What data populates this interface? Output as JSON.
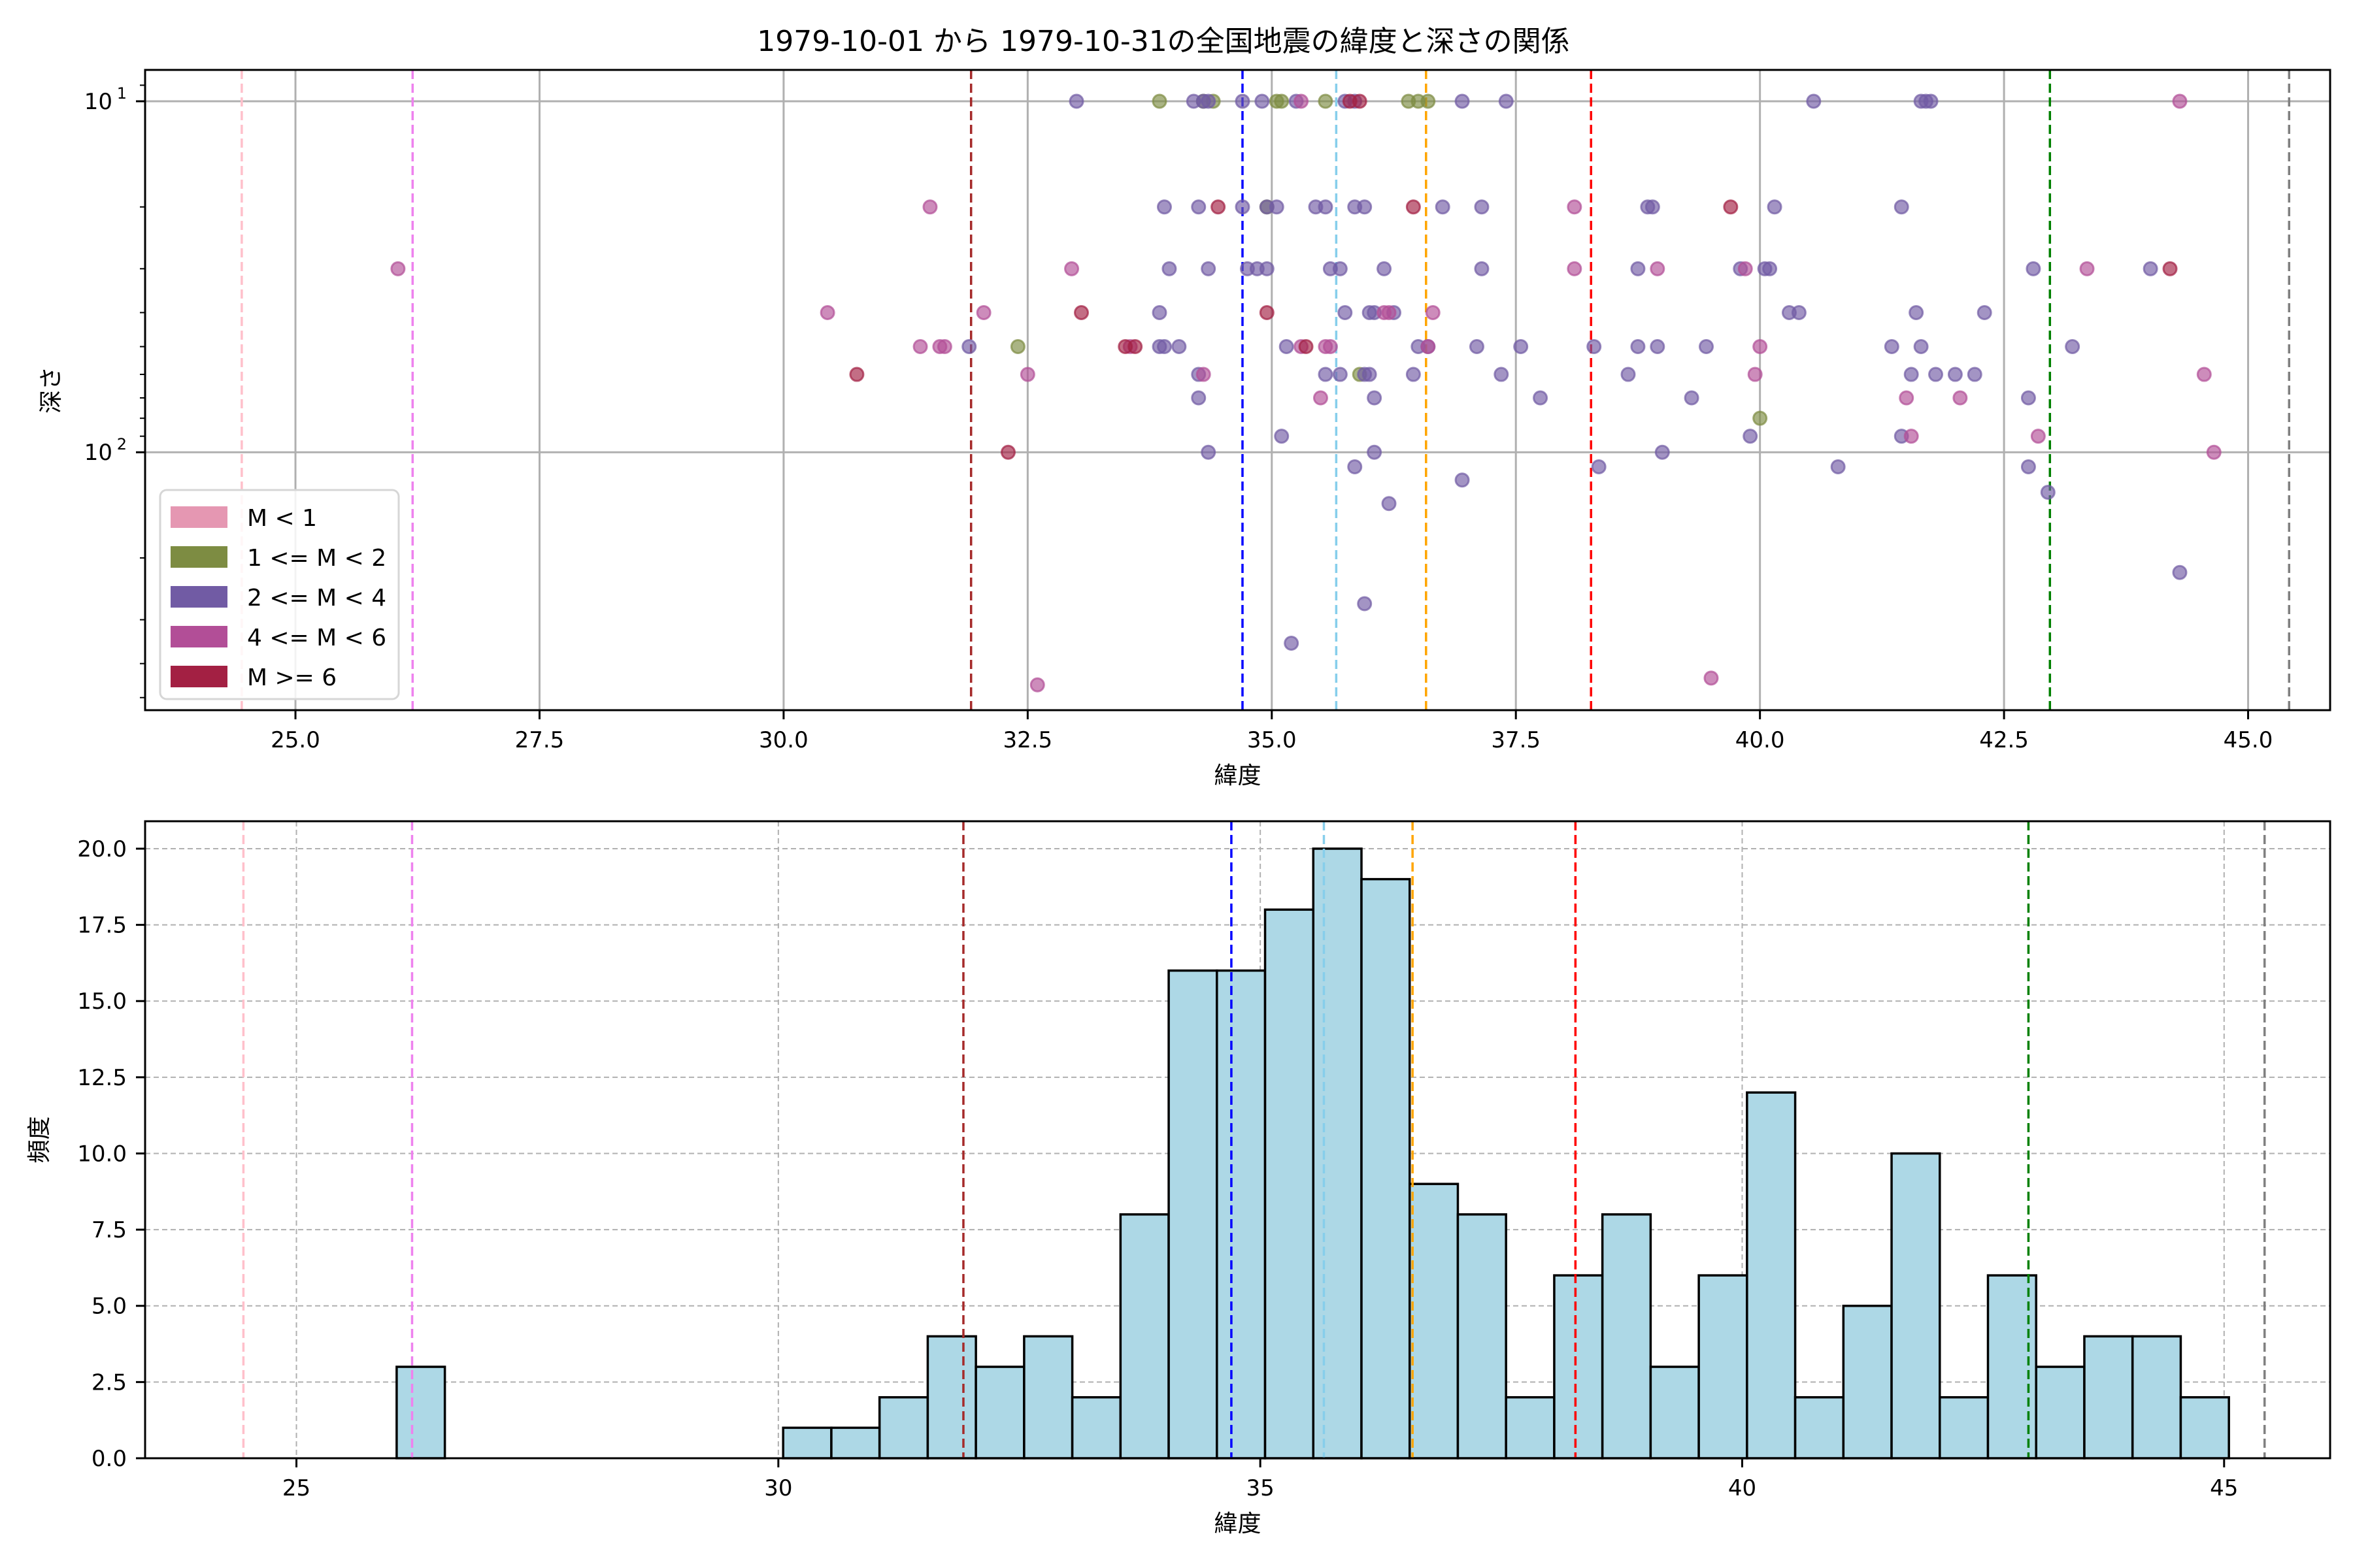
{
  "figure_title": "1979-10-01 から 1979-10-31の全国地震の緯度と深さの関係",
  "colors": {
    "M<1": "#e597b2",
    "1<=M<2": "#7d8c42",
    "2<=M<4": "#715ba4",
    "4<=M<6": "#b24e97",
    "M>=6": "#a32043",
    "hist_fill": "#add8e6",
    "hist_edge": "#000000",
    "grid": "#b0b0b0"
  },
  "chart_data": [
    {
      "type": "scatter",
      "title": "1979-10-01 から 1979-10-31の全国地震の緯度と深さの関係",
      "xlabel": "緯度",
      "ylabel": "深さ",
      "xlim": [
        23.46,
        45.84
      ],
      "ylim": [
        543,
        8.14
      ],
      "yscale": "log",
      "y_inverted": true,
      "xticks": [
        25.0,
        27.5,
        30.0,
        32.5,
        35.0,
        37.5,
        40.0,
        42.5,
        45.0
      ],
      "xtick_labels": [
        "25.0",
        "27.5",
        "30.0",
        "32.5",
        "35.0",
        "37.5",
        "40.0",
        "42.5",
        "45.0"
      ],
      "yticks": [
        10,
        100
      ],
      "ytick_labels": [
        {
          "base": "10",
          "exp": "1"
        },
        {
          "base": "10",
          "exp": "2"
        }
      ],
      "grid": true,
      "legend_position": "lower-left",
      "legend": [
        {
          "label": "M < 1",
          "key": "M<1"
        },
        {
          "label": "1 <= M < 2",
          "key": "1<=M<2"
        },
        {
          "label": "2 <= M < 4",
          "key": "2<=M<4"
        },
        {
          "label": "4 <= M < 6",
          "key": "4<=M<6"
        },
        {
          "label": "M >= 6",
          "key": "M>=6"
        }
      ],
      "series": [
        {
          "name": "1 <= M < 2",
          "key": "1<=M<2",
          "points": [
            [
              33.85,
              10
            ],
            [
              34.3,
              10
            ],
            [
              35.05,
              10
            ],
            [
              35.1,
              10
            ],
            [
              34.4,
              10
            ],
            [
              35.55,
              10
            ],
            [
              36.4,
              10
            ],
            [
              36.5,
              10
            ],
            [
              36.6,
              10
            ],
            [
              34.95,
              20
            ],
            [
              32.4,
              50
            ],
            [
              35.9,
              60
            ],
            [
              40.0,
              80
            ]
          ]
        },
        {
          "name": "2 <= M < 4",
          "key": "2<=M<4",
          "points": [
            [
              33.0,
              10
            ],
            [
              34.2,
              10
            ],
            [
              34.3,
              10
            ],
            [
              34.35,
              10
            ],
            [
              34.7,
              10
            ],
            [
              34.9,
              10
            ],
            [
              35.25,
              10
            ],
            [
              35.75,
              10
            ],
            [
              35.85,
              10
            ],
            [
              36.95,
              10
            ],
            [
              37.4,
              10
            ],
            [
              40.55,
              10
            ],
            [
              41.65,
              10
            ],
            [
              41.7,
              10
            ],
            [
              41.75,
              10
            ],
            [
              33.9,
              20
            ],
            [
              34.25,
              20
            ],
            [
              34.7,
              20
            ],
            [
              34.95,
              20
            ],
            [
              35.05,
              20
            ],
            [
              35.45,
              20
            ],
            [
              35.55,
              20
            ],
            [
              35.85,
              20
            ],
            [
              35.95,
              20
            ],
            [
              36.75,
              20
            ],
            [
              37.15,
              20
            ],
            [
              38.85,
              20
            ],
            [
              38.9,
              20
            ],
            [
              40.15,
              20
            ],
            [
              41.45,
              20
            ],
            [
              33.95,
              30
            ],
            [
              34.35,
              30
            ],
            [
              34.75,
              30
            ],
            [
              34.85,
              30
            ],
            [
              34.95,
              30
            ],
            [
              35.6,
              30
            ],
            [
              35.7,
              30
            ],
            [
              36.15,
              30
            ],
            [
              37.15,
              30
            ],
            [
              38.75,
              30
            ],
            [
              39.8,
              30
            ],
            [
              40.05,
              30
            ],
            [
              40.1,
              30
            ],
            [
              42.8,
              30
            ],
            [
              44.0,
              30
            ],
            [
              33.85,
              40
            ],
            [
              35.75,
              40
            ],
            [
              36.0,
              40
            ],
            [
              36.05,
              40
            ],
            [
              36.25,
              40
            ],
            [
              40.3,
              40
            ],
            [
              40.4,
              40
            ],
            [
              41.6,
              40
            ],
            [
              42.3,
              40
            ],
            [
              31.9,
              50
            ],
            [
              33.85,
              50
            ],
            [
              33.9,
              50
            ],
            [
              34.05,
              50
            ],
            [
              35.15,
              50
            ],
            [
              36.5,
              50
            ],
            [
              36.6,
              50
            ],
            [
              37.1,
              50
            ],
            [
              37.55,
              50
            ],
            [
              38.3,
              50
            ],
            [
              38.75,
              50
            ],
            [
              38.95,
              50
            ],
            [
              39.45,
              50
            ],
            [
              41.35,
              50
            ],
            [
              41.65,
              50
            ],
            [
              43.2,
              50
            ],
            [
              34.25,
              60
            ],
            [
              35.55,
              60
            ],
            [
              35.7,
              60
            ],
            [
              35.95,
              60
            ],
            [
              36.0,
              60
            ],
            [
              36.45,
              60
            ],
            [
              37.35,
              60
            ],
            [
              38.65,
              60
            ],
            [
              41.55,
              60
            ],
            [
              41.8,
              60
            ],
            [
              42.0,
              60
            ],
            [
              42.2,
              60
            ],
            [
              34.25,
              70
            ],
            [
              36.05,
              70
            ],
            [
              37.75,
              70
            ],
            [
              39.3,
              70
            ],
            [
              42.75,
              70
            ],
            [
              35.1,
              90
            ],
            [
              39.9,
              90
            ],
            [
              41.45,
              90
            ],
            [
              34.35,
              100
            ],
            [
              36.05,
              100
            ],
            [
              39.0,
              100
            ],
            [
              35.85,
              110
            ],
            [
              38.35,
              110
            ],
            [
              40.8,
              110
            ],
            [
              42.75,
              110
            ],
            [
              36.2,
              140
            ],
            [
              36.95,
              120
            ],
            [
              42.95,
              130
            ],
            [
              44.3,
              220
            ],
            [
              35.95,
              270
            ],
            [
              35.2,
              350
            ]
          ]
        },
        {
          "name": "4 <= M < 6",
          "key": "4<=M<6",
          "points": [
            [
              35.3,
              10
            ],
            [
              44.3,
              10
            ],
            [
              31.5,
              20
            ],
            [
              38.1,
              20
            ],
            [
              26.05,
              30
            ],
            [
              32.95,
              30
            ],
            [
              38.1,
              30
            ],
            [
              38.95,
              30
            ],
            [
              39.85,
              30
            ],
            [
              43.35,
              30
            ],
            [
              30.45,
              40
            ],
            [
              32.05,
              40
            ],
            [
              36.15,
              40
            ],
            [
              36.2,
              40
            ],
            [
              36.65,
              40
            ],
            [
              31.4,
              50
            ],
            [
              31.6,
              50
            ],
            [
              31.65,
              50
            ],
            [
              33.55,
              50
            ],
            [
              35.55,
              50
            ],
            [
              35.6,
              50
            ],
            [
              36.6,
              50
            ],
            [
              34.3,
              60
            ],
            [
              39.95,
              60
            ],
            [
              40.0,
              50
            ],
            [
              44.55,
              60
            ],
            [
              32.5,
              60
            ],
            [
              35.5,
              70
            ],
            [
              35.3,
              50
            ],
            [
              41.5,
              70
            ],
            [
              42.05,
              70
            ],
            [
              41.55,
              90
            ],
            [
              42.85,
              90
            ],
            [
              44.65,
              100
            ],
            [
              39.5,
              440
            ],
            [
              32.6,
              460
            ]
          ]
        },
        {
          "name": "M >= 6",
          "key": "M>=6",
          "points": [
            [
              35.8,
              10
            ],
            [
              35.9,
              10
            ],
            [
              34.45,
              20
            ],
            [
              36.45,
              20
            ],
            [
              39.7,
              20
            ],
            [
              44.2,
              30
            ],
            [
              33.05,
              40
            ],
            [
              34.95,
              40
            ],
            [
              30.75,
              60
            ],
            [
              33.5,
              50
            ],
            [
              33.6,
              50
            ],
            [
              35.35,
              50
            ],
            [
              32.3,
              100
            ]
          ]
        }
      ],
      "vlines": [
        {
          "x": 24.45,
          "color": "#ffc0cb"
        },
        {
          "x": 26.2,
          "color": "#ee82ee"
        },
        {
          "x": 31.92,
          "color": "#a52a2a"
        },
        {
          "x": 34.7,
          "color": "#0000ff"
        },
        {
          "x": 35.66,
          "color": "#87ceeb"
        },
        {
          "x": 36.58,
          "color": "#ffa500"
        },
        {
          "x": 38.27,
          "color": "#ff0000"
        },
        {
          "x": 42.97,
          "color": "#008000"
        },
        {
          "x": 45.42,
          "color": "#808080"
        }
      ]
    },
    {
      "type": "bar",
      "subtype": "histogram",
      "title": "",
      "xlabel": "緯度",
      "ylabel": "頻度",
      "xlim": [
        23.43,
        46.1
      ],
      "ylim": [
        0,
        20.9
      ],
      "xticks": [
        25,
        30,
        35,
        40,
        45
      ],
      "xtick_labels": [
        "25",
        "30",
        "35",
        "40",
        "45"
      ],
      "yticks": [
        0,
        2.5,
        5,
        7.5,
        10,
        12.5,
        15,
        17.5,
        20
      ],
      "ytick_labels": [
        "0.0",
        "2.5",
        "5.0",
        "7.5",
        "10.0",
        "12.5",
        "15.0",
        "17.5",
        "20.0"
      ],
      "grid": true,
      "bin_width": 0.5,
      "bins": [
        {
          "start": 26.04,
          "count": 3
        },
        {
          "start": 30.05,
          "count": 1
        },
        {
          "start": 30.55,
          "count": 1
        },
        {
          "start": 31.05,
          "count": 2
        },
        {
          "start": 31.55,
          "count": 4
        },
        {
          "start": 32.05,
          "count": 3
        },
        {
          "start": 32.55,
          "count": 4
        },
        {
          "start": 33.05,
          "count": 2
        },
        {
          "start": 33.55,
          "count": 8
        },
        {
          "start": 34.05,
          "count": 16
        },
        {
          "start": 34.55,
          "count": 16
        },
        {
          "start": 35.05,
          "count": 18
        },
        {
          "start": 35.55,
          "count": 20
        },
        {
          "start": 36.05,
          "count": 19
        },
        {
          "start": 36.55,
          "count": 9
        },
        {
          "start": 37.05,
          "count": 8
        },
        {
          "start": 37.55,
          "count": 2
        },
        {
          "start": 38.05,
          "count": 6
        },
        {
          "start": 38.55,
          "count": 8
        },
        {
          "start": 39.05,
          "count": 3
        },
        {
          "start": 39.55,
          "count": 6
        },
        {
          "start": 40.05,
          "count": 12
        },
        {
          "start": 40.55,
          "count": 2
        },
        {
          "start": 41.05,
          "count": 5
        },
        {
          "start": 41.55,
          "count": 10
        },
        {
          "start": 42.05,
          "count": 2
        },
        {
          "start": 42.55,
          "count": 6
        },
        {
          "start": 43.05,
          "count": 3
        },
        {
          "start": 43.55,
          "count": 4
        },
        {
          "start": 44.05,
          "count": 4
        },
        {
          "start": 44.55,
          "count": 2
        }
      ],
      "vlines": [
        {
          "x": 24.45,
          "color": "#ffc0cb"
        },
        {
          "x": 26.2,
          "color": "#ee82ee"
        },
        {
          "x": 31.92,
          "color": "#a52a2a"
        },
        {
          "x": 34.7,
          "color": "#0000ff"
        },
        {
          "x": 35.66,
          "color": "#87ceeb"
        },
        {
          "x": 36.58,
          "color": "#ffa500"
        },
        {
          "x": 38.27,
          "color": "#ff0000"
        },
        {
          "x": 42.97,
          "color": "#008000"
        },
        {
          "x": 45.42,
          "color": "#808080"
        }
      ]
    }
  ]
}
